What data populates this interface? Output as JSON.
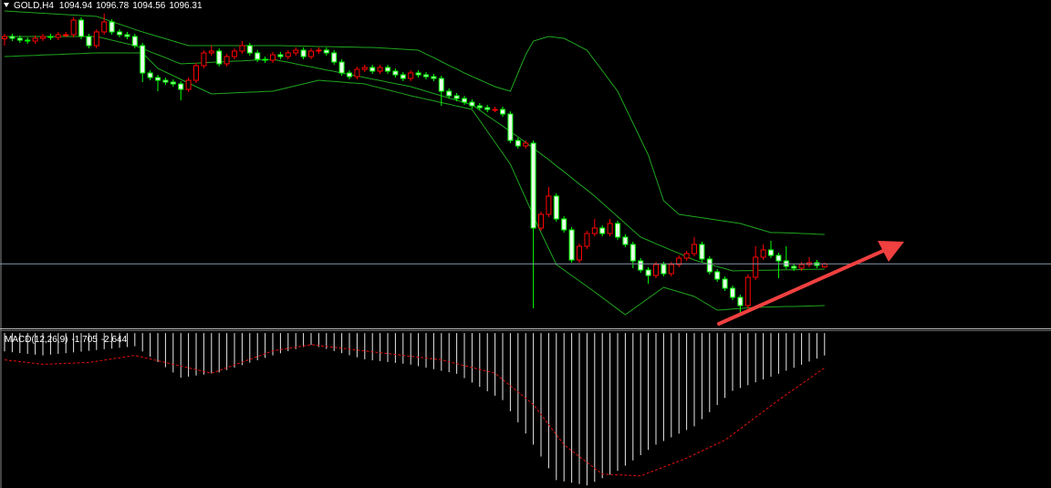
{
  "chart_data": [
    {
      "type": "candlestick",
      "title": "GOLD,H4",
      "up_color": "#ff0000",
      "down_color": "#00ff00",
      "down_fill": "#e6ffe6",
      "ylim": [
        1068,
        1212
      ],
      "price_line": true,
      "price_line_color": "#8796ab",
      "open": [
        1195,
        1196,
        1195.2,
        1194.4,
        1194,
        1195.2,
        1196,
        1195.6,
        1196.8,
        1196.8,
        1203.2,
        1196,
        1192,
        1198,
        1202.4,
        1198,
        1196.8,
        1196,
        1192,
        1180,
        1178,
        1176.8,
        1176,
        1175.2,
        1172.8,
        1176.8,
        1183.2,
        1188.8,
        1189.6,
        1184,
        1187.2,
        1189.6,
        1192,
        1188.8,
        1186,
        1185.6,
        1188,
        1187.2,
        1188.8,
        1190,
        1187.2,
        1189.6,
        1190,
        1188.8,
        1184.8,
        1180,
        1178.4,
        1181.6,
        1182.4,
        1180.8,
        1182.4,
        1180.8,
        1179.2,
        1177.6,
        1180,
        1179.2,
        1178.4,
        1177.6,
        1172,
        1170,
        1168.8,
        1167.2,
        1165.6,
        1164.8,
        1164,
        1164,
        1162,
        1150.4,
        1148,
        1149.2,
        1112,
        1118,
        1126,
        1116,
        1111.2,
        1098,
        1104,
        1109.6,
        1112,
        1109.6,
        1114,
        1108,
        1104.8,
        1097.6,
        1093.6,
        1091.2,
        1096,
        1092,
        1096,
        1098.8,
        1100.8,
        1104.8,
        1098.4,
        1092.8,
        1089.6,
        1085.6,
        1081.6,
        1078,
        1090.4,
        1099.2,
        1102.4,
        1100,
        1097.6,
        1095.2,
        1094.4,
        1096,
        1096.8,
        1094.94
      ],
      "high": [
        1197.2,
        1197.2,
        1196.4,
        1195.6,
        1196.4,
        1197.2,
        1197.2,
        1198,
        1198,
        1204.4,
        1204.4,
        1197.2,
        1199.2,
        1206,
        1203.6,
        1199.2,
        1198,
        1197.2,
        1193.2,
        1181.2,
        1179.2,
        1178,
        1177.2,
        1176.4,
        1178,
        1184.4,
        1190,
        1192,
        1190.8,
        1188.4,
        1190.8,
        1194,
        1193.2,
        1190,
        1187.2,
        1189.2,
        1189.2,
        1190,
        1191.2,
        1191.2,
        1190.8,
        1191.2,
        1191.2,
        1190,
        1186,
        1181.2,
        1182.8,
        1183.6,
        1183.6,
        1183.6,
        1183.6,
        1182,
        1180.4,
        1181.2,
        1181.2,
        1180.4,
        1179.6,
        1178.8,
        1173.2,
        1171.2,
        1170,
        1168.4,
        1166.8,
        1166,
        1165.2,
        1165.2,
        1163.2,
        1151.6,
        1150.4,
        1150.4,
        1119.2,
        1130,
        1127.2,
        1117.2,
        1112.4,
        1105.2,
        1110.8,
        1116,
        1113.2,
        1116,
        1115.2,
        1109.2,
        1106,
        1098.8,
        1094.8,
        1097.2,
        1097.2,
        1097.2,
        1100,
        1102,
        1108,
        1106,
        1099.6,
        1094,
        1090.8,
        1086.8,
        1082.8,
        1091.6,
        1104,
        1104.8,
        1106.4,
        1101.2,
        1104,
        1096.4,
        1097.2,
        1099.2,
        1098,
        1096.78
      ],
      "low": [
        1192,
        1194,
        1193.2,
        1192.8,
        1192.8,
        1194,
        1194.4,
        1194.4,
        1195.6,
        1195.6,
        1194.8,
        1190.8,
        1190.8,
        1196.8,
        1196.8,
        1195.6,
        1194.8,
        1190.8,
        1176,
        1176.8,
        1172,
        1174.8,
        1174,
        1168,
        1171.6,
        1175.6,
        1182,
        1187.6,
        1182.8,
        1182.8,
        1186,
        1188.4,
        1187.6,
        1184.8,
        1184.4,
        1184.4,
        1186,
        1186,
        1187.6,
        1186,
        1186,
        1188.4,
        1187.6,
        1183.6,
        1178.8,
        1177.2,
        1177.2,
        1180.4,
        1179.6,
        1179.6,
        1179.6,
        1178,
        1176.4,
        1176.4,
        1178,
        1177.2,
        1176.4,
        1165.6,
        1168.8,
        1167.6,
        1166,
        1164.4,
        1163.6,
        1162.8,
        1162.8,
        1160.8,
        1149.2,
        1146.8,
        1146.8,
        1076.8,
        1110.8,
        1116.8,
        1114.8,
        1110,
        1096.8,
        1096.8,
        1102.8,
        1108.4,
        1108.4,
        1108.4,
        1106.8,
        1103.6,
        1094.4,
        1092.4,
        1087.6,
        1090,
        1090.8,
        1090.8,
        1094.8,
        1097.6,
        1099.6,
        1097.2,
        1091.6,
        1088.4,
        1084.4,
        1080.4,
        1074.4,
        1076.8,
        1089.2,
        1098,
        1098.8,
        1090,
        1094,
        1093.2,
        1093.2,
        1094.8,
        1094.4,
        1094.56
      ],
      "close": [
        1196,
        1195.2,
        1194.4,
        1194,
        1195.2,
        1196,
        1195.6,
        1196.8,
        1196.8,
        1203.2,
        1196,
        1192,
        1198,
        1202.4,
        1198,
        1196.8,
        1196,
        1192,
        1180,
        1178,
        1176.8,
        1176,
        1175.2,
        1172.8,
        1176.8,
        1183.2,
        1188.8,
        1189.6,
        1184,
        1187.2,
        1189.6,
        1192,
        1188.8,
        1186,
        1185.6,
        1188,
        1187.2,
        1188.8,
        1190,
        1187.2,
        1189.6,
        1190,
        1188.8,
        1184.8,
        1180,
        1178.4,
        1181.6,
        1182.4,
        1180.8,
        1182.4,
        1180.8,
        1179.2,
        1177.6,
        1180,
        1179.2,
        1178.4,
        1177.6,
        1172,
        1170,
        1168.8,
        1167.2,
        1165.6,
        1164.8,
        1164,
        1164,
        1162,
        1150.4,
        1148,
        1149.2,
        1112,
        1118,
        1126,
        1116,
        1111.2,
        1098,
        1104,
        1109.6,
        1112,
        1109.6,
        1114,
        1108,
        1104.8,
        1097.6,
        1093.6,
        1091.2,
        1096,
        1092,
        1096,
        1098.8,
        1100.8,
        1104.8,
        1098.4,
        1092.8,
        1089.6,
        1085.6,
        1081.6,
        1078,
        1090.4,
        1099.2,
        1102.4,
        1100,
        1097.6,
        1095.2,
        1094.4,
        1096,
        1096.8,
        1095.6,
        1096.31
      ],
      "bands": [
        {
          "color": "#1fa51f",
          "values": [
            1207.2,
            1207,
            1206.8,
            1206.6,
            1206.4,
            1206.2,
            1206,
            1205.8,
            1205.6,
            1205.4,
            1205.2,
            1205,
            1204.8,
            1203.7,
            1202.5,
            1201.4,
            1200.3,
            1199.1,
            1198,
            1197,
            1196,
            1195,
            1194,
            1193,
            1192,
            1192,
            1192,
            1192,
            1192,
            1192,
            1192,
            1192,
            1192,
            1192,
            1192,
            1192,
            1192,
            1191.9,
            1191.9,
            1191.8,
            1191.7,
            1191.6,
            1191.6,
            1191.5,
            1191.4,
            1191.4,
            1191.3,
            1191.2,
            1191.2,
            1191,
            1190.8,
            1190.6,
            1190.4,
            1190.2,
            1190,
            1188.3,
            1186.7,
            1185,
            1183.3,
            1181.7,
            1180,
            1178.5,
            1177,
            1175.5,
            1174,
            1173,
            1172,
            1180,
            1188,
            1194,
            1195,
            1196,
            1195.6,
            1195.2,
            1193.5,
            1191.7,
            1190,
            1185.5,
            1181,
            1176.5,
            1172,
            1165,
            1158,
            1151,
            1144,
            1134,
            1124,
            1121,
            1118,
            1117.5,
            1117,
            1116.5,
            1116,
            1115.5,
            1115,
            1114.5,
            1114,
            1113,
            1112,
            1111,
            1110,
            1110,
            1109.9,
            1109.8,
            1109.6,
            1109.5,
            1109.3,
            1109.2
          ]
        },
        {
          "color": "#1fa51f",
          "values": [
            1196,
            1196,
            1196,
            1196,
            1196,
            1196,
            1196,
            1196,
            1196,
            1196,
            1196,
            1196,
            1196,
            1195.2,
            1194.4,
            1193.6,
            1192.8,
            1192,
            1190.7,
            1189.3,
            1188,
            1186.7,
            1185.3,
            1184,
            1184.2,
            1184.3,
            1184.5,
            1184.7,
            1184.8,
            1185,
            1185.2,
            1185.3,
            1185.5,
            1185.7,
            1185.8,
            1186,
            1185.3,
            1184.7,
            1184,
            1183.3,
            1182.7,
            1182,
            1181.3,
            1180.7,
            1180,
            1179.3,
            1178.7,
            1178,
            1177.3,
            1176.7,
            1176,
            1175.3,
            1174.7,
            1174,
            1173,
            1172,
            1171,
            1170,
            1169,
            1168,
            1167,
            1166,
            1163.7,
            1161.3,
            1159,
            1156.7,
            1154.3,
            1152,
            1149.5,
            1147,
            1144.5,
            1142,
            1139.3,
            1136.7,
            1134,
            1131.3,
            1128.7,
            1126,
            1123,
            1120,
            1117,
            1114,
            1111,
            1108,
            1106.6,
            1105.1,
            1103.7,
            1102.3,
            1100.9,
            1099.4,
            1098,
            1097,
            1096.1,
            1095.1,
            1094.2,
            1093.2,
            1093.3,
            1093.3,
            1093.4,
            1093.5,
            1093.5,
            1093.6,
            1093.7,
            1093.7,
            1093.8,
            1093.9,
            1093.9,
            1094
          ]
        },
        {
          "color": "#1fa51f",
          "values": [
            1187.2,
            1187.3,
            1187.5,
            1187.6,
            1187.7,
            1187.9,
            1188,
            1188.1,
            1188.3,
            1188.4,
            1188.5,
            1188.7,
            1188.8,
            1188.8,
            1188.8,
            1188.8,
            1188.8,
            1188.8,
            1188.8,
            1185.4,
            1182,
            1180.4,
            1178.8,
            1177.2,
            1175.6,
            1174,
            1172.4,
            1170.8,
            1171,
            1171.1,
            1171.3,
            1171.4,
            1171.6,
            1171.7,
            1171.9,
            1172,
            1172.8,
            1173.6,
            1174.4,
            1175.2,
            1176,
            1176.8,
            1176.5,
            1176.3,
            1176,
            1175.7,
            1175.5,
            1175.2,
            1174.3,
            1173.5,
            1172.6,
            1171.7,
            1170.9,
            1170,
            1169.3,
            1168.5,
            1167.8,
            1167,
            1166.3,
            1165.5,
            1164.8,
            1164,
            1159.2,
            1154.4,
            1149.6,
            1144.8,
            1140,
            1132.5,
            1125,
            1117.5,
            1110,
            1103,
            1096,
            1093.6,
            1091.2,
            1088.8,
            1086.4,
            1084,
            1081.5,
            1079,
            1076.5,
            1074,
            1076.4,
            1078.8,
            1081.2,
            1083.6,
            1086,
            1085,
            1084,
            1083,
            1082,
            1080,
            1078,
            1076,
            1076.2,
            1076.5,
            1076.7,
            1077,
            1077.2,
            1077.3,
            1077.4,
            1077.5,
            1077.6,
            1077.6,
            1077.7,
            1077.8,
            1077.9,
            1078
          ]
        }
      ]
    },
    {
      "type": "macd",
      "title": "MACD(12,26,9)",
      "ylim": [
        -11.8,
        0.15
      ],
      "histogram": {
        "color": "#e8e8e8",
        "values": [
          -1.4,
          -1.46,
          -1.52,
          -1.58,
          -1.64,
          -1.7,
          -1.64,
          -1.58,
          -1.53,
          -1.47,
          -1.41,
          -1.35,
          -1.29,
          -1.23,
          -1.18,
          -1.12,
          -1.06,
          -1.0,
          -1.4,
          -1.8,
          -2.2,
          -2.6,
          -3.0,
          -3.4,
          -3.32,
          -3.24,
          -3.16,
          -3.08,
          -3.0,
          -2.81,
          -2.63,
          -2.44,
          -2.26,
          -2.07,
          -1.89,
          -1.7,
          -1.54,
          -1.38,
          -1.22,
          -1.06,
          -0.9,
          -1.06,
          -1.21,
          -1.37,
          -1.53,
          -1.69,
          -1.84,
          -2.0,
          -2.07,
          -2.13,
          -2.2,
          -2.27,
          -2.33,
          -2.4,
          -2.52,
          -2.63,
          -2.75,
          -2.87,
          -2.98,
          -3.1,
          -3.43,
          -3.77,
          -4.1,
          -4.43,
          -4.77,
          -5.1,
          -5.95,
          -6.8,
          -7.65,
          -8.5,
          -9.4,
          -10.3,
          -11.2,
          -11.3,
          -11.4,
          -11.5,
          -11.6,
          -11.33,
          -11.05,
          -10.78,
          -10.5,
          -10.1,
          -9.7,
          -9.3,
          -8.9,
          -8.5,
          -8.22,
          -7.94,
          -7.66,
          -7.38,
          -7.1,
          -6.56,
          -6.02,
          -5.48,
          -4.94,
          -4.4,
          -4.18,
          -3.97,
          -3.75,
          -3.53,
          -3.32,
          -3.1,
          -2.87,
          -2.64,
          -2.41,
          -2.17,
          -1.94,
          -1.705
        ]
      },
      "signal": {
        "color": "#e01010",
        "values": [
          -2.04,
          -2.11,
          -2.18,
          -2.24,
          -2.31,
          -2.38,
          -2.36,
          -2.33,
          -2.31,
          -2.29,
          -2.26,
          -2.24,
          -2.15,
          -2.06,
          -1.97,
          -1.88,
          -1.79,
          -1.7,
          -1.84,
          -1.97,
          -2.11,
          -2.24,
          -2.38,
          -2.52,
          -2.65,
          -2.79,
          -2.92,
          -3.06,
          -2.85,
          -2.64,
          -2.42,
          -2.21,
          -2.0,
          -1.79,
          -1.57,
          -1.36,
          -1.26,
          -1.17,
          -1.07,
          -0.98,
          -0.88,
          -0.95,
          -1.02,
          -1.09,
          -1.15,
          -1.22,
          -1.29,
          -1.36,
          -1.43,
          -1.5,
          -1.56,
          -1.63,
          -1.7,
          -1.77,
          -1.84,
          -1.9,
          -1.97,
          -2.04,
          -2.19,
          -2.33,
          -2.48,
          -2.62,
          -2.77,
          -2.91,
          -3.06,
          -3.54,
          -4.01,
          -4.49,
          -4.96,
          -5.44,
          -6.2,
          -6.97,
          -7.73,
          -8.5,
          -8.95,
          -9.4,
          -9.84,
          -10.29,
          -10.74,
          -10.77,
          -10.8,
          -10.82,
          -10.85,
          -10.88,
          -10.65,
          -10.43,
          -10.2,
          -9.97,
          -9.75,
          -9.52,
          -9.25,
          -8.98,
          -8.7,
          -8.43,
          -8.16,
          -7.72,
          -7.29,
          -6.85,
          -6.41,
          -5.97,
          -5.54,
          -5.1,
          -4.69,
          -4.28,
          -3.87,
          -3.47,
          -3.06,
          -2.644
        ]
      }
    }
  ]
}
